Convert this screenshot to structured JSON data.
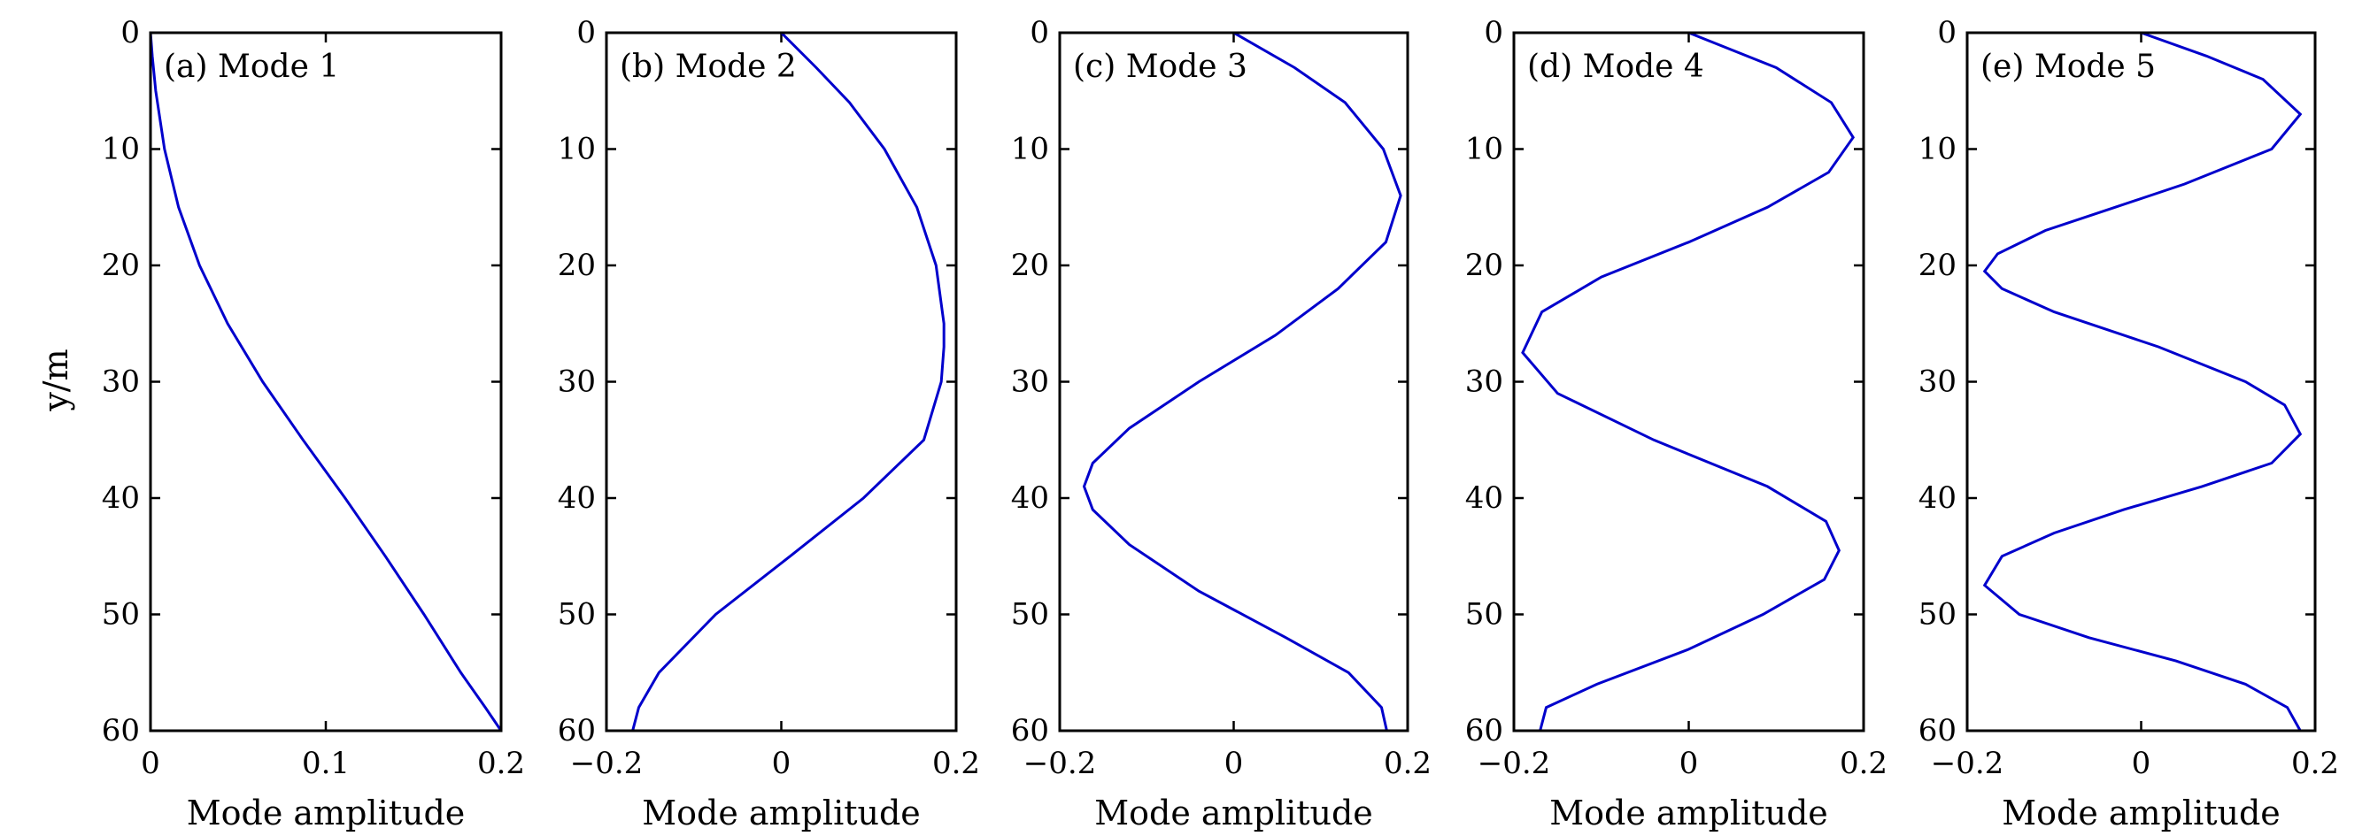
{
  "chart_data": [
    {
      "type": "line",
      "panel_label": "(a) Mode 1",
      "xlabel": "Mode amplitude",
      "ylabel": "y/m",
      "xlim": [
        0,
        0.2
      ],
      "ylim": [
        0,
        60
      ],
      "y_inverted": true,
      "x_ticks": [
        "0",
        "0.1",
        "0.2"
      ],
      "y_ticks": [
        "0",
        "10",
        "20",
        "30",
        "40",
        "50",
        "60"
      ],
      "line_color": "#0000cc",
      "y": [
        0,
        2,
        5,
        10,
        15,
        20,
        25,
        30,
        35,
        40,
        45,
        50,
        55,
        58,
        60
      ],
      "x": [
        0,
        0.001,
        0.003,
        0.008,
        0.016,
        0.028,
        0.044,
        0.064,
        0.087,
        0.111,
        0.134,
        0.156,
        0.177,
        0.191,
        0.2
      ]
    },
    {
      "type": "line",
      "panel_label": "(b) Mode 2",
      "xlabel": "Mode amplitude",
      "ylabel": "",
      "xlim": [
        -0.2,
        0.2
      ],
      "ylim": [
        0,
        60
      ],
      "y_inverted": true,
      "x_ticks": [
        "−0.2",
        "0",
        "0.2"
      ],
      "y_ticks": [
        "0",
        "10",
        "20",
        "30",
        "40",
        "50",
        "60"
      ],
      "line_color": "#0000cc",
      "y": [
        0,
        3,
        6,
        10,
        15,
        20,
        25,
        27,
        30,
        35,
        40,
        45,
        50,
        55,
        58,
        60
      ],
      "x": [
        0,
        0.04,
        0.078,
        0.118,
        0.155,
        0.177,
        0.186,
        0.186,
        0.183,
        0.163,
        0.094,
        0.01,
        -0.075,
        -0.14,
        -0.163,
        -0.17
      ]
    },
    {
      "type": "line",
      "panel_label": "(c) Mode 3",
      "xlabel": "Mode amplitude",
      "ylabel": "",
      "xlim": [
        -0.2,
        0.2
      ],
      "ylim": [
        0,
        60
      ],
      "y_inverted": true,
      "x_ticks": [
        "−0.2",
        "0",
        "0.2"
      ],
      "y_ticks": [
        "0",
        "10",
        "20",
        "30",
        "40",
        "50",
        "60"
      ],
      "line_color": "#0000cc",
      "y": [
        0,
        3,
        6,
        10,
        14,
        18,
        22,
        26,
        30,
        34,
        37,
        39,
        41,
        44,
        48,
        52,
        55,
        58,
        60
      ],
      "x": [
        0,
        0.07,
        0.128,
        0.172,
        0.192,
        0.175,
        0.12,
        0.048,
        -0.04,
        -0.12,
        -0.162,
        -0.172,
        -0.162,
        -0.12,
        -0.04,
        0.06,
        0.132,
        0.17,
        0.176
      ]
    },
    {
      "type": "line",
      "panel_label": "(d) Mode 4",
      "xlabel": "Mode amplitude",
      "ylabel": "",
      "xlim": [
        -0.2,
        0.2
      ],
      "ylim": [
        0,
        60
      ],
      "y_inverted": true,
      "x_ticks": [
        "−0.2",
        "0",
        "0.2"
      ],
      "y_ticks": [
        "0",
        "10",
        "20",
        "30",
        "40",
        "50",
        "60"
      ],
      "line_color": "#0000cc",
      "y": [
        0,
        3,
        6,
        9,
        12,
        15,
        18,
        21,
        24,
        27.5,
        31,
        35,
        39,
        42,
        44.5,
        47,
        50,
        53,
        56,
        58,
        60
      ],
      "x": [
        0,
        0.1,
        0.163,
        0.188,
        0.16,
        0.09,
        0.0,
        -0.1,
        -0.168,
        -0.19,
        -0.15,
        -0.04,
        0.09,
        0.157,
        0.172,
        0.155,
        0.085,
        0.0,
        -0.105,
        -0.163,
        -0.17
      ]
    },
    {
      "type": "line",
      "panel_label": "(e) Mode 5",
      "xlabel": "Mode amplitude",
      "ylabel": "",
      "xlim": [
        -0.2,
        0.2
      ],
      "ylim": [
        0,
        60
      ],
      "y_inverted": true,
      "x_ticks": [
        "−0.2",
        "0",
        "0.2"
      ],
      "y_ticks": [
        "0",
        "10",
        "20",
        "30",
        "40",
        "50",
        "60"
      ],
      "line_color": "#0000cc",
      "y": [
        0,
        2,
        4,
        7,
        10,
        13,
        15,
        17,
        19,
        20.5,
        22,
        24,
        27,
        30,
        32,
        34.5,
        37,
        39,
        41,
        43,
        45,
        47.5,
        50,
        52,
        54,
        56,
        58,
        60
      ],
      "x": [
        0,
        0.075,
        0.14,
        0.183,
        0.15,
        0.05,
        -0.03,
        -0.11,
        -0.165,
        -0.18,
        -0.16,
        -0.1,
        0.02,
        0.12,
        0.165,
        0.183,
        0.15,
        0.07,
        -0.02,
        -0.1,
        -0.16,
        -0.18,
        -0.14,
        -0.06,
        0.04,
        0.12,
        0.168,
        0.183
      ]
    }
  ]
}
